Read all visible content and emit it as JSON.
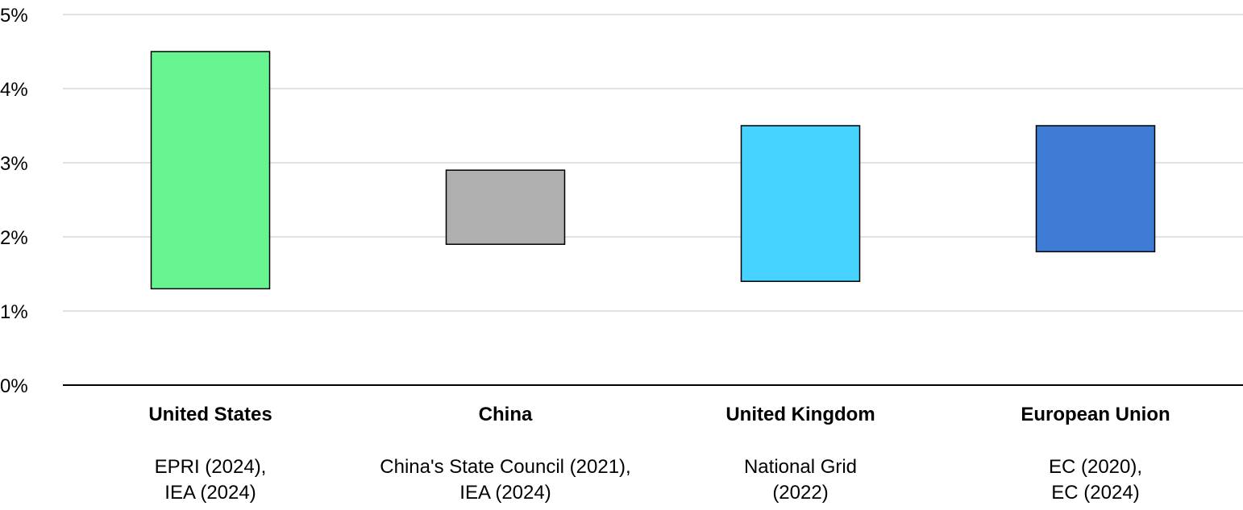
{
  "chart_data": {
    "type": "bar",
    "subtype": "floating-range",
    "title": "",
    "xlabel": "",
    "ylabel": "",
    "y_unit": "%",
    "ylim": [
      0,
      5
    ],
    "y_ticks": [
      "0%",
      "1%",
      "2%",
      "3%",
      "4%",
      "5%"
    ],
    "grid": true,
    "legend": "none",
    "categories": [
      {
        "name": "United States",
        "sources": [
          "EPRI (2024),",
          "IEA (2024)"
        ],
        "low": 1.3,
        "high": 4.5,
        "color": "#66F590"
      },
      {
        "name": "China",
        "sources": [
          "China's State Council (2021),",
          "IEA (2024)"
        ],
        "low": 1.9,
        "high": 2.9,
        "color": "#AFAFAF"
      },
      {
        "name": "United Kingdom",
        "sources": [
          "National Grid",
          "(2022)"
        ],
        "low": 1.4,
        "high": 3.5,
        "color": "#47D3FF"
      },
      {
        "name": "European Union",
        "sources": [
          "EC (2020),",
          "EC (2024)"
        ],
        "low": 1.8,
        "high": 3.5,
        "color": "#3E7BD4"
      }
    ]
  }
}
